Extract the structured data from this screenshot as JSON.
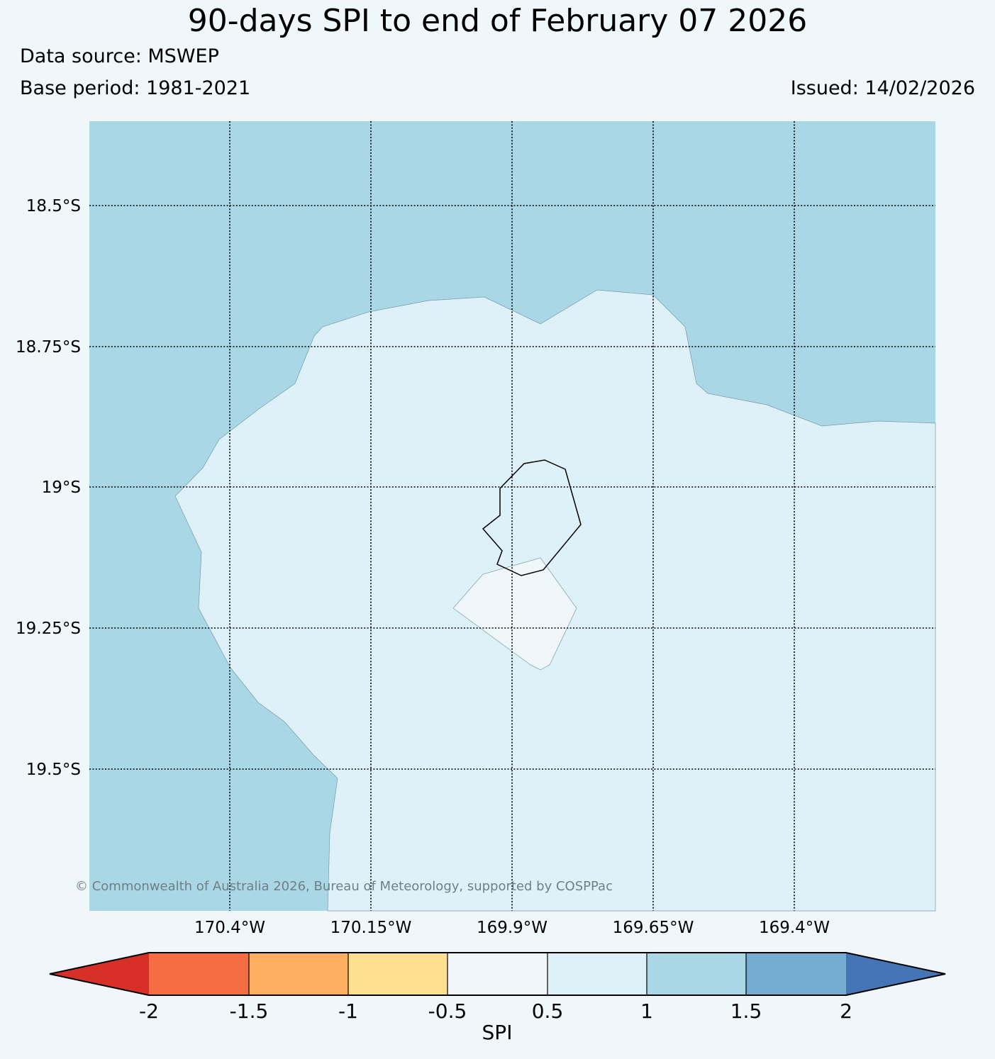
{
  "title": "90-days SPI to end of February 07 2026",
  "data_source": "Data source: MSWEP",
  "base_period": "Base period: 1981-2021",
  "issued": "Issued: 14/02/2026",
  "copyright": "© Commonwealth of Australia 2026, Bureau of Meteorology, supported by COSPPac",
  "map": {
    "latitude_labels": [
      "18.5°S",
      "18.75°S",
      "19°S",
      "19.25°S",
      "19.5°S"
    ],
    "longitude_labels": [
      "170.4°W",
      "170.15°W",
      "169.9°W",
      "169.65°W",
      "169.4°W"
    ],
    "regions": [
      {
        "name": "spi-1-to-1.5",
        "color": "#a9d7e6"
      },
      {
        "name": "spi-0.5-to-1",
        "color": "#dff1f8"
      },
      {
        "name": "spi-minus-0.5-to-0.5",
        "color": "#eff7fa"
      }
    ],
    "island": "Niue coastline"
  },
  "colorbar": {
    "label": "SPI",
    "ticks": [
      "-2",
      "-1.5",
      "-1",
      "-0.5",
      "0.5",
      "1",
      "1.5",
      "2"
    ],
    "colors": [
      "#d73027",
      "#f46d43",
      "#fdae61",
      "#fee090",
      "#eff7fa",
      "#dff1f8",
      "#a9d7e6",
      "#74add1",
      "#4575b4"
    ]
  }
}
